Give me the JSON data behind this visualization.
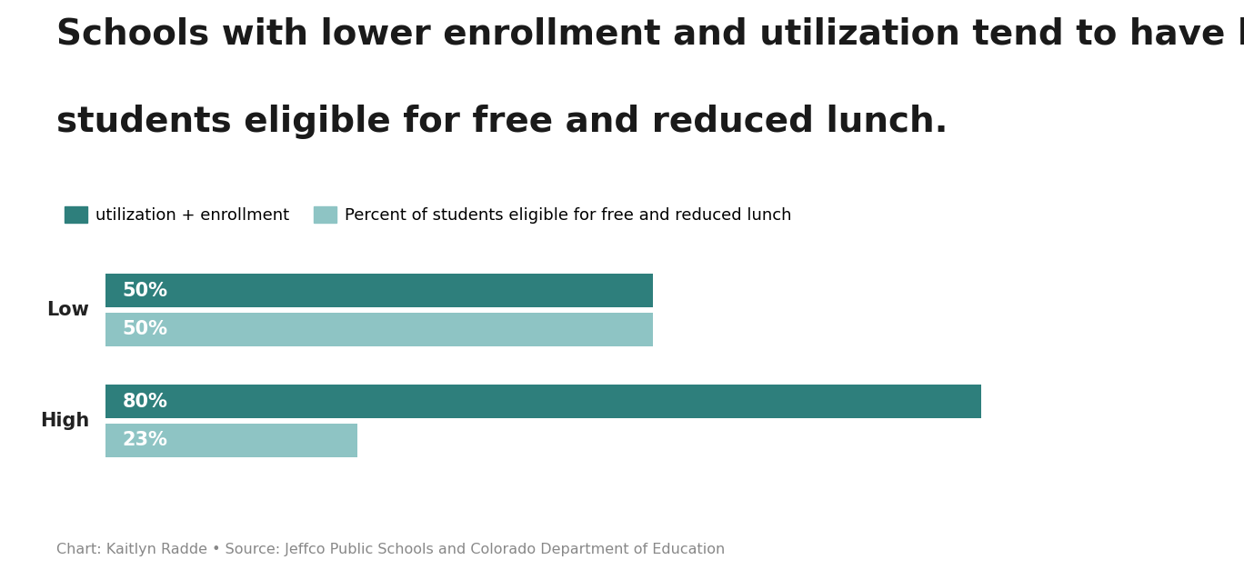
{
  "title_line1": "Schools with lower enrollment and utilization tend to have higher rates of",
  "title_line2": "students eligible for free and reduced lunch.",
  "categories": [
    "Low",
    "High"
  ],
  "utilization_values": [
    50,
    80
  ],
  "lunch_values": [
    50,
    23
  ],
  "utilization_color": "#2e7f7c",
  "lunch_color": "#8ec4c4",
  "label_utilization": "utilization + enrollment",
  "label_lunch": "Percent of students eligible for free and reduced lunch",
  "bar_label_color": "#ffffff",
  "bar_label_fontsize": 15,
  "legend_fontsize": 13,
  "source_text": "Chart: Kaitlyn Radde • Source: Jeffco Public Schools and Colorado Department of Education",
  "source_color": "#888888",
  "background_color": "#ffffff",
  "xlim": [
    0,
    100
  ],
  "title_fontsize": 28,
  "title_color": "#1a1a1a",
  "cat_label_fontsize": 15,
  "cat_label_color": "#222222"
}
